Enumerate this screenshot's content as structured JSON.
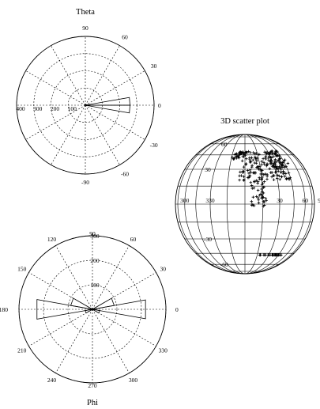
{
  "chart_data": [
    {
      "type": "polar_histogram",
      "title": "Theta",
      "angle_tick_labels": [
        "0",
        "30",
        "60",
        "90",
        "-30",
        "-60",
        "-90"
      ],
      "angle_ticks_deg": [
        0,
        30,
        60,
        90,
        -30,
        -60,
        -90
      ],
      "radial_tick_labels": [
        "100",
        "200",
        "300",
        "400"
      ],
      "radial_ticks": [
        100,
        200,
        300,
        400
      ],
      "rmax": 400,
      "grid": true,
      "bins": [
        {
          "angle_deg": -15,
          "width_deg": 10,
          "value": 10
        },
        {
          "angle_deg": -5,
          "width_deg": 10,
          "value": 260
        },
        {
          "angle_deg": 5,
          "width_deg": 10,
          "value": 260
        },
        {
          "angle_deg": 15,
          "width_deg": 10,
          "value": 10
        }
      ]
    },
    {
      "type": "polar_histogram",
      "title": "Phi",
      "angle_tick_labels": [
        "0",
        "30",
        "60",
        "90",
        "120",
        "150",
        "180",
        "210",
        "240",
        "270",
        "300",
        "330"
      ],
      "angle_ticks_deg": [
        0,
        30,
        60,
        90,
        120,
        150,
        180,
        210,
        240,
        270,
        300,
        330
      ],
      "radial_tick_labels": [
        "100",
        "200",
        "300"
      ],
      "radial_ticks": [
        100,
        200,
        300
      ],
      "rmax": 300,
      "grid": true,
      "bins": [
        {
          "angle_deg": 0,
          "width_deg": 20,
          "value": 220
        },
        {
          "angle_deg": 180,
          "width_deg": 20,
          "value": 230
        },
        {
          "angle_deg": 20,
          "width_deg": 20,
          "value": 90
        },
        {
          "angle_deg": 160,
          "width_deg": 20,
          "value": 90
        },
        {
          "angle_deg": 340,
          "width_deg": 20,
          "value": 30
        },
        {
          "angle_deg": 200,
          "width_deg": 20,
          "value": 30
        }
      ]
    },
    {
      "type": "scatter",
      "projection": "sphere",
      "title": "3D scatter plot",
      "longitude_tick_labels": [
        "300",
        "330",
        "30",
        "60",
        "90"
      ],
      "longitude_ticks_deg": [
        -60,
        -30,
        30,
        60,
        90
      ],
      "latitude_tick_labels": [
        "60",
        "30",
        "-30",
        "-60"
      ],
      "latitude_ticks_deg": [
        60,
        30,
        -30,
        -60
      ],
      "marker": "+",
      "clusters": [
        {
          "lon_range": [
            -5,
            45
          ],
          "lat_range": [
            20,
            50
          ],
          "count": 190
        },
        {
          "lon_range": [
            5,
            18
          ],
          "lat_range": [
            -2,
            22
          ],
          "count": 45
        },
        {
          "lon_range": [
            -15,
            0
          ],
          "lat_range": [
            40,
            50
          ],
          "count": 25
        },
        {
          "lon_range": [
            15,
            50
          ],
          "lat_range": [
            -47,
            -47
          ],
          "count": 34
        },
        {
          "lon_range": [
            30,
            50
          ],
          "lat_range": [
            28,
            40
          ],
          "count": 14
        }
      ]
    }
  ]
}
